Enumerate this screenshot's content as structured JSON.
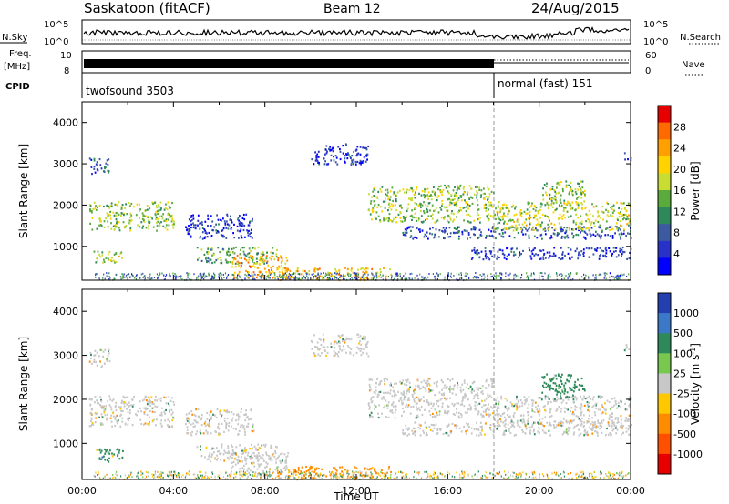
{
  "header": {
    "title": "Saskatoon (fitACF)",
    "beam": "Beam 12",
    "date": "24/Aug/2015"
  },
  "nsky_panel": {
    "left_label": "N.Sky",
    "left_ticks": [
      "10^5",
      "10^0"
    ],
    "right_ticks": [
      "10^5",
      "10^0"
    ],
    "right_label": "N.Search"
  },
  "freq_panel": {
    "left_label_1": "Freq.",
    "left_label_2": "[MHz]",
    "left_ticks": [
      "10",
      "8"
    ],
    "right_ticks": [
      "60",
      "0"
    ],
    "right_label": "Nave"
  },
  "cpid_panel": {
    "label": "CPID",
    "segments": [
      {
        "name": "twofsound 3503",
        "start": "00:00",
        "end": "18:00"
      },
      {
        "name": "normal (fast) 151",
        "start": "18:00",
        "end": "00:00"
      }
    ]
  },
  "chart_data": [
    {
      "type": "heatmap",
      "parameter": "power",
      "ylabel": "Slant Range [km]",
      "xlabel": "",
      "ylim": [
        180,
        4500
      ],
      "xlim": [
        "00:00",
        "24:00"
      ],
      "yticks": [
        "1000",
        "2000",
        "3000",
        "4000"
      ],
      "colorbar": {
        "label": "Power [dB]",
        "ticks": [
          "28",
          "24",
          "20",
          "16",
          "12",
          "8",
          "4"
        ],
        "colors": [
          "#e60000",
          "#ff6a00",
          "#ffa000",
          "#ffd200",
          "#c8dc32",
          "#5aaa3c",
          "#2e8a5a",
          "#3c5aa0",
          "#2832c8",
          "#0000ff"
        ]
      },
      "echo_regions": [
        {
          "t": [
            0.3,
            4.0
          ],
          "range": [
            1400,
            2100
          ],
          "level": 16
        },
        {
          "t": [
            0.3,
            1.2
          ],
          "range": [
            2750,
            3150
          ],
          "level": 8
        },
        {
          "t": [
            0.5,
            1.8
          ],
          "range": [
            600,
            900
          ],
          "level": 18
        },
        {
          "t": [
            4.5,
            7.5
          ],
          "range": [
            1200,
            1800
          ],
          "level": 6
        },
        {
          "t": [
            5.0,
            8.5
          ],
          "range": [
            600,
            1000
          ],
          "level": 14
        },
        {
          "t": [
            6.5,
            9.0
          ],
          "range": [
            250,
            800
          ],
          "level": 24
        },
        {
          "t": [
            8.5,
            13.5
          ],
          "range": [
            200,
            500
          ],
          "level": 22
        },
        {
          "t": [
            10.0,
            12.5
          ],
          "range": [
            3000,
            3500
          ],
          "level": 6
        },
        {
          "t": [
            12.5,
            18.0
          ],
          "range": [
            1600,
            2500
          ],
          "level": 16
        },
        {
          "t": [
            14.0,
            24.0
          ],
          "range": [
            1200,
            1500
          ],
          "level": 8
        },
        {
          "t": [
            17.0,
            24.0
          ],
          "range": [
            700,
            1000
          ],
          "level": 6
        },
        {
          "t": [
            18.0,
            24.0
          ],
          "range": [
            1400,
            2100
          ],
          "level": 18
        },
        {
          "t": [
            20.0,
            22.0
          ],
          "range": [
            2000,
            2600
          ],
          "level": 16
        },
        {
          "t": [
            23.7,
            24.0
          ],
          "range": [
            3100,
            3300
          ],
          "level": 6
        }
      ]
    },
    {
      "type": "heatmap",
      "parameter": "velocity",
      "ylabel": "Slant Range [km]",
      "xlabel": "Time UT",
      "ylim": [
        180,
        4500
      ],
      "xlim": [
        "00:00",
        "24:00"
      ],
      "xticks": [
        "00:00",
        "04:00",
        "08:00",
        "12:00",
        "16:00",
        "20:00",
        "00:00"
      ],
      "yticks": [
        "1000",
        "2000",
        "3000",
        "4000"
      ],
      "colorbar": {
        "label": "Velocity [m s^-1]",
        "ticks": [
          "1000",
          "500",
          "100",
          "25",
          "-25",
          "-100",
          "-500",
          "-1000"
        ],
        "colors": [
          "#2440b0",
          "#3c78c8",
          "#2e8a5a",
          "#78c850",
          "#c8c8c8",
          "#ffc800",
          "#ff8c00",
          "#ff5000",
          "#e60000"
        ]
      },
      "echo_regions": [
        {
          "t": [
            0.3,
            4.0
          ],
          "range": [
            1400,
            2100
          ],
          "vel": 0
        },
        {
          "t": [
            0.3,
            1.2
          ],
          "range": [
            2750,
            3150
          ],
          "vel": 0
        },
        {
          "t": [
            0.5,
            1.8
          ],
          "range": [
            600,
            900
          ],
          "vel": 150
        },
        {
          "t": [
            4.5,
            7.5
          ],
          "range": [
            1200,
            1800
          ],
          "vel": 0
        },
        {
          "t": [
            5.0,
            8.5
          ],
          "range": [
            600,
            1000
          ],
          "vel": 0
        },
        {
          "t": [
            6.5,
            9.0
          ],
          "range": [
            250,
            800
          ],
          "vel": 0
        },
        {
          "t": [
            8.5,
            13.5
          ],
          "range": [
            200,
            500
          ],
          "vel": -150
        },
        {
          "t": [
            10.0,
            12.5
          ],
          "range": [
            3000,
            3500
          ],
          "vel": 0
        },
        {
          "t": [
            12.5,
            18.0
          ],
          "range": [
            1600,
            2500
          ],
          "vel": 0
        },
        {
          "t": [
            14.0,
            24.0
          ],
          "range": [
            1200,
            1500
          ],
          "vel": 0
        },
        {
          "t": [
            18.0,
            24.0
          ],
          "range": [
            1400,
            2100
          ],
          "vel": 0
        },
        {
          "t": [
            20.0,
            22.0
          ],
          "range": [
            2000,
            2600
          ],
          "vel": 120
        },
        {
          "t": [
            23.7,
            24.0
          ],
          "range": [
            3100,
            3300
          ],
          "vel": 0
        }
      ]
    }
  ]
}
